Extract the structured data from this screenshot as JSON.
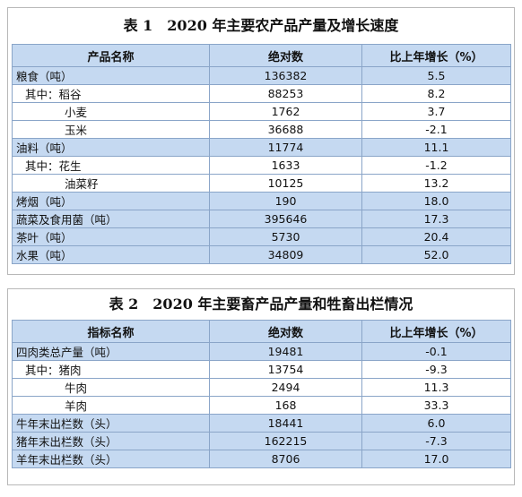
{
  "table1": {
    "title": "表 1　2020 年主要农产品产量及增长速度",
    "header": [
      "产品名称",
      "绝对数",
      "比上年增长（%）"
    ],
    "rows": [
      [
        "粮食（吨）",
        "136382",
        "5.5"
      ],
      [
        "其中：稻谷",
        "88253",
        "8.2"
      ],
      [
        "小麦",
        "1762",
        "3.7"
      ],
      [
        "玉米",
        "36688",
        "-2.1"
      ],
      [
        "油料（吨）",
        "11774",
        "11.1"
      ],
      [
        "其中：花生",
        "1633",
        "-1.2"
      ],
      [
        "油菜籽",
        "10125",
        "13.2"
      ],
      [
        "烤烟（吨）",
        "190",
        "18.0"
      ],
      [
        "蔬菜及食用菌（吨）",
        "395646",
        "17.3"
      ],
      [
        "茶叶（吨）",
        "5730",
        "20.4"
      ],
      [
        "水果（吨）",
        "34809",
        "52.0"
      ]
    ]
  },
  "table2": {
    "title": "表 2　2020 年主要畜产品产量和牲畜出栏情况",
    "header": [
      "指标名称",
      "绝对数",
      "比上年增长（%）"
    ],
    "rows": [
      [
        "四肉类总产量（吨）",
        "19481",
        "-0.1"
      ],
      [
        "其中：猪肉",
        "13754",
        "-9.3"
      ],
      [
        "牛肉",
        "2494",
        "11.3"
      ],
      [
        "羊肉",
        "168",
        "33.3"
      ],
      [
        "牛年末出栏数（头）",
        "18441",
        "6.0"
      ],
      [
        "猪年末出栏数（头）",
        "162215",
        "-7.3"
      ],
      [
        "羊年末出栏数（头）",
        "8706",
        "17.0"
      ]
    ]
  }
}
